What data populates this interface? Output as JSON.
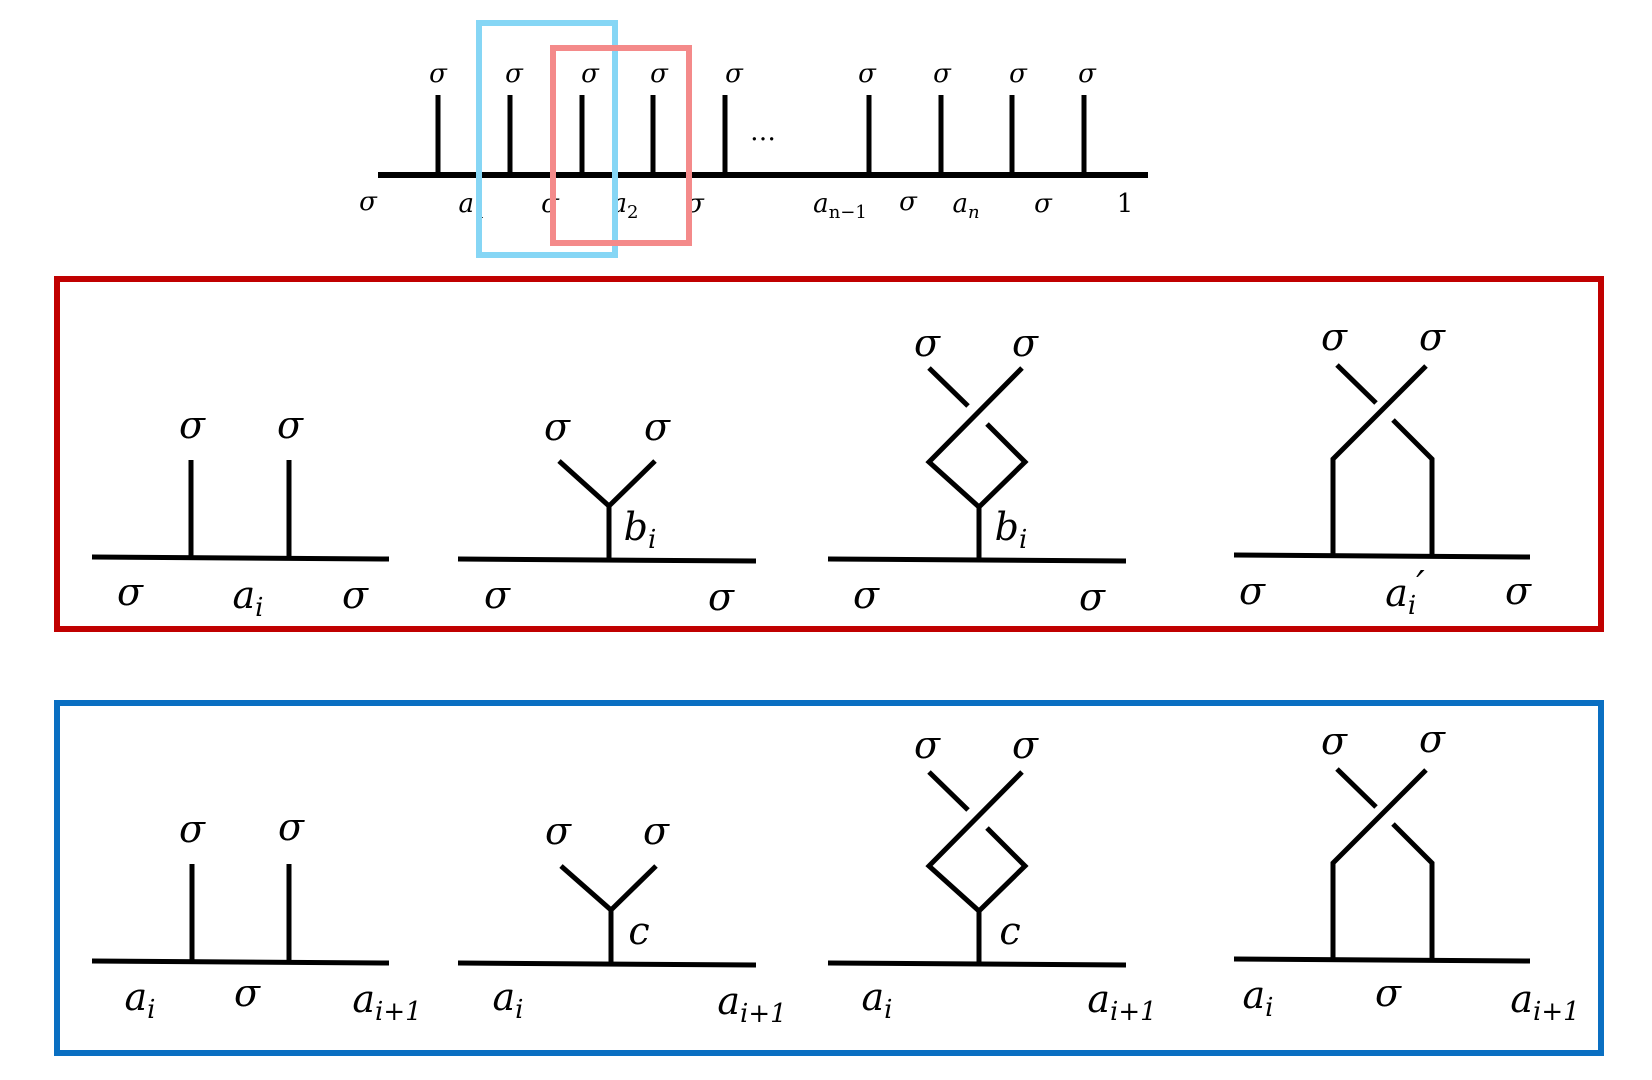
{
  "top_chain": {
    "top_labels": [
      "σ",
      "σ",
      "σ",
      "σ",
      "σ",
      "σ",
      "σ",
      "σ",
      "σ"
    ],
    "ellipsis": "…",
    "bottom_labels": {
      "sigma": "σ",
      "a": "a",
      "sub1": "1",
      "sub2": "2",
      "subn1": "n−1",
      "subn": "n",
      "one": "1"
    }
  },
  "highlight_colors": {
    "blue_box": "#86d6f5",
    "red_box": "#f48a8a",
    "red_panel": "#c00000",
    "blue_panel": "#0a6fc2"
  },
  "red_panel": {
    "sigma": "σ",
    "a": "a",
    "b": "b",
    "sub_i": "i",
    "prime": "′"
  },
  "blue_panel": {
    "sigma": "σ",
    "a": "a",
    "c": "c",
    "sub_i": "i",
    "sub_i1": "i+1"
  }
}
